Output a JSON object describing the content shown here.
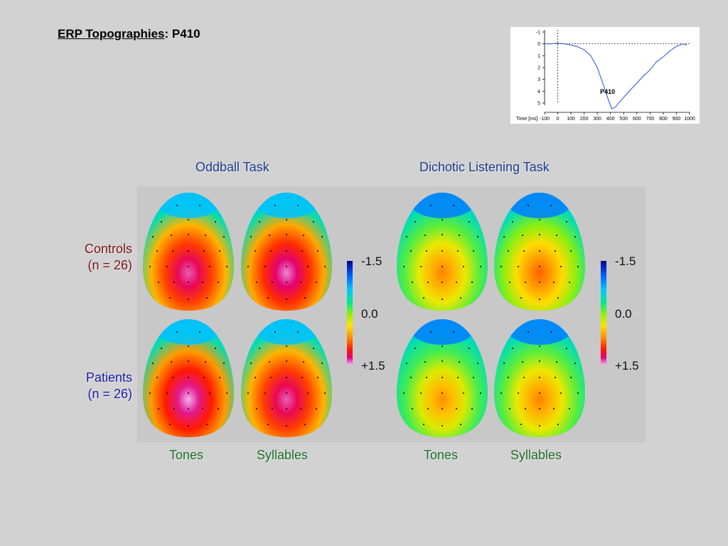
{
  "title": {
    "underlined": "ERP Topographies",
    "rest": ":  P410"
  },
  "erp_panel": {
    "y_ticks": [
      "-1",
      "0",
      "1",
      "2",
      "3",
      "4",
      "5"
    ],
    "x_ticks": [
      "-100",
      "0",
      "100",
      "200",
      "300",
      "400",
      "500",
      "600",
      "700",
      "800",
      "900",
      "1000"
    ],
    "x_axis_label": "Time [ms]",
    "peak_label": "P410",
    "line_color": "#3a5ee0"
  },
  "chart_data": {
    "type": "line",
    "title": "",
    "xlabel": "Time [ms]",
    "ylabel": "",
    "xlim": [
      -100,
      1000
    ],
    "ylim": [
      -1,
      5
    ],
    "y_inverted": true,
    "annotations": [
      "P410"
    ],
    "series": [
      {
        "x": [
          -100,
          -50,
          0,
          50,
          100,
          150,
          200,
          250,
          300,
          350,
          380,
          410,
          440,
          470,
          500,
          550,
          600,
          650,
          700,
          750,
          800,
          850,
          900,
          950,
          980
        ],
        "values": [
          0,
          0,
          -0.05,
          0,
          0.1,
          0.25,
          0.5,
          1.0,
          2.0,
          3.6,
          4.6,
          5.5,
          5.3,
          4.9,
          4.5,
          3.9,
          3.3,
          2.7,
          2.2,
          1.5,
          1.1,
          0.6,
          0.2,
          0.0,
          0.1
        ]
      }
    ]
  },
  "headers": {
    "oddball": "Oddball Task",
    "dichotic": "Dichotic Listening Task"
  },
  "groups": {
    "controls": {
      "line1": "Controls",
      "line2": "(n = 26)"
    },
    "patients": {
      "line1": "Patients",
      "line2": "(n = 26)"
    }
  },
  "colorbar": {
    "top": "-1.5",
    "mid": "0.0",
    "bottom": "+1.5"
  },
  "conditions": {
    "tones": "Tones",
    "syllables": "Syllables"
  },
  "maps": [
    {
      "task": "Oddball Task",
      "group": "Controls",
      "condition": "Tones",
      "center_level": 1.4
    },
    {
      "task": "Oddball Task",
      "group": "Controls",
      "condition": "Syllables",
      "center_level": 1.45
    },
    {
      "task": "Dichotic Listening Task",
      "group": "Controls",
      "condition": "Tones",
      "center_level": 0.75
    },
    {
      "task": "Dichotic Listening Task",
      "group": "Controls",
      "condition": "Syllables",
      "center_level": 0.85
    },
    {
      "task": "Oddball Task",
      "group": "Patients",
      "condition": "Tones",
      "center_level": 1.5
    },
    {
      "task": "Oddball Task",
      "group": "Patients",
      "condition": "Syllables",
      "center_level": 1.4
    },
    {
      "task": "Dichotic Listening Task",
      "group": "Patients",
      "condition": "Tones",
      "center_level": 0.7
    },
    {
      "task": "Dichotic Listening Task",
      "group": "Patients",
      "condition": "Syllables",
      "center_level": 0.75
    }
  ]
}
